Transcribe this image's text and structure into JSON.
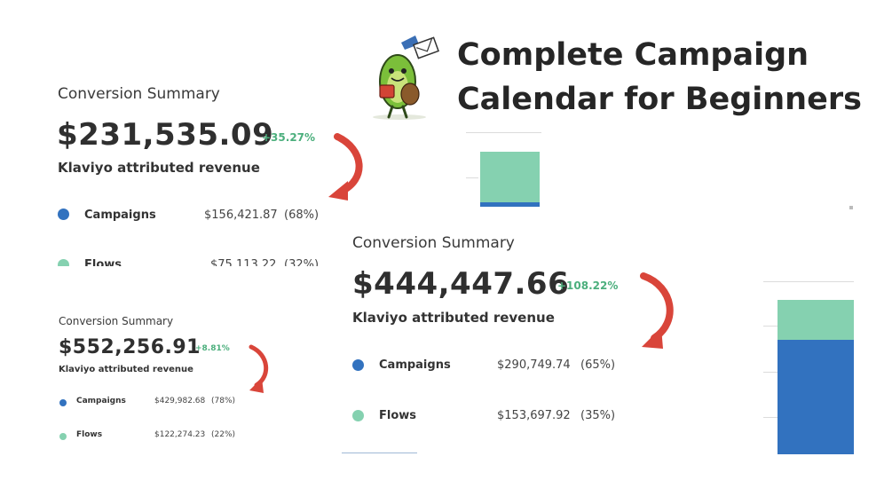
{
  "headline": {
    "line1": "Complete Campaign",
    "line2": "Calendar for Beginners"
  },
  "colors": {
    "campaigns": "#3272bf",
    "flows": "#85d1b0",
    "arrow": "#d9453a",
    "positive": "#4caf7d"
  },
  "card_a": {
    "label": "Conversion Summary",
    "amount": "$231,535.09",
    "change": "+35.27%",
    "subtitle": "Klaviyo attributed revenue",
    "rows": [
      {
        "name": "Campaigns",
        "value": "$156,421.87",
        "pct": "(68%)"
      },
      {
        "name": "Flows",
        "value": "$75,113.22",
        "pct": "(32%)"
      }
    ]
  },
  "card_b": {
    "label": "Conversion Summary",
    "amount": "$552,256.91",
    "change": "+8.81%",
    "subtitle": "Klaviyo attributed revenue",
    "rows": [
      {
        "name": "Campaigns",
        "value": "$429,982.68",
        "pct": "(78%)"
      },
      {
        "name": "Flows",
        "value": "$122,274.23",
        "pct": "(22%)"
      }
    ]
  },
  "card_c": {
    "label": "Conversion Summary",
    "amount": "$444,447.66",
    "change": "+108.22%",
    "subtitle": "Klaviyo attributed revenue",
    "rows": [
      {
        "name": "Campaigns",
        "value": "$290,749.74",
        "pct": "(65%)"
      },
      {
        "name": "Flows",
        "value": "$153,697.92",
        "pct": "(35%)"
      }
    ]
  },
  "bar_top": {
    "campaigns_fraction": 0.08,
    "flows_fraction": 0.92
  },
  "bar_right": {
    "campaigns_fraction": 0.74,
    "flows_fraction": 0.26
  },
  "mascot_icon": "avocado-mail-carrier-icon"
}
